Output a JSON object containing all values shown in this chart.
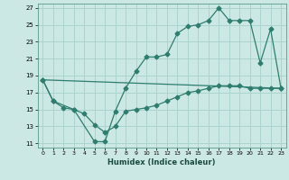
{
  "xlabel": "Humidex (Indice chaleur)",
  "bg_color": "#cce8e4",
  "grid_color": "#aad4cf",
  "line_color": "#2e7d6e",
  "xlim": [
    -0.5,
    23.5
  ],
  "ylim": [
    10.5,
    27.5
  ],
  "xticks": [
    0,
    1,
    2,
    3,
    4,
    5,
    6,
    7,
    8,
    9,
    10,
    11,
    12,
    13,
    14,
    15,
    16,
    17,
    18,
    19,
    20,
    21,
    22,
    23
  ],
  "yticks": [
    11,
    13,
    15,
    17,
    19,
    21,
    23,
    25,
    27
  ],
  "line1_x": [
    0,
    1,
    3,
    5,
    6,
    7,
    8,
    9,
    10,
    11,
    12,
    13,
    14,
    15,
    16,
    17,
    18,
    19,
    20,
    21,
    22,
    23
  ],
  "line1_y": [
    18.5,
    16.0,
    15.0,
    11.2,
    11.2,
    14.8,
    17.5,
    19.5,
    21.2,
    21.2,
    21.5,
    24.0,
    24.8,
    25.0,
    25.5,
    27.0,
    25.5,
    25.5,
    25.5,
    20.5,
    24.5,
    17.5
  ],
  "line2_x": [
    0,
    23
  ],
  "line2_y": [
    18.5,
    17.5
  ],
  "line3_x": [
    0,
    1,
    2,
    3,
    4,
    5,
    6,
    7,
    8,
    9,
    10,
    11,
    12,
    13,
    14,
    15,
    16,
    17,
    18,
    19,
    20,
    21,
    22,
    23
  ],
  "line3_y": [
    18.5,
    16.0,
    15.2,
    15.0,
    14.5,
    13.2,
    12.3,
    13.0,
    14.8,
    15.0,
    15.2,
    15.5,
    16.0,
    16.5,
    17.0,
    17.2,
    17.5,
    17.8,
    17.8,
    17.8,
    17.5,
    17.5,
    17.5,
    17.5
  ]
}
